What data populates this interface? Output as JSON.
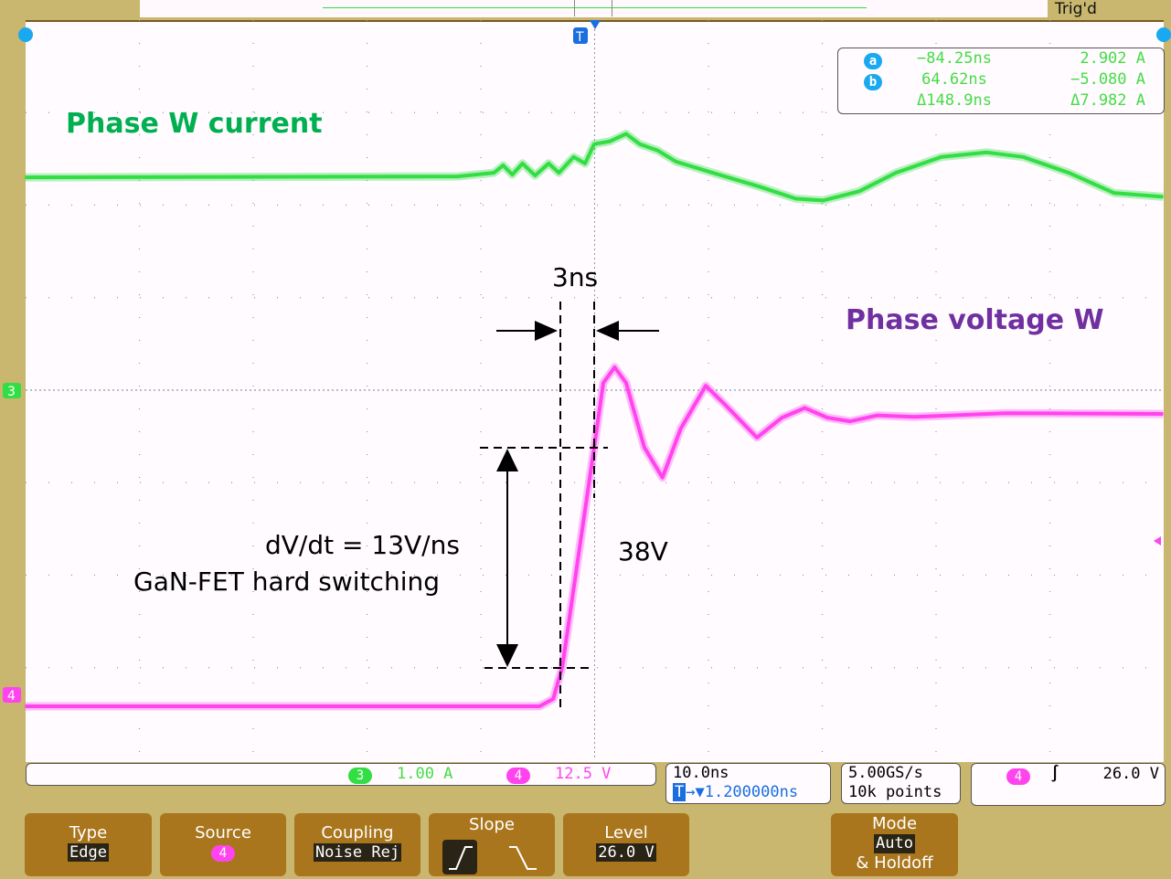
{
  "status": {
    "trigger_state": "Trig'd"
  },
  "labels": {
    "current": "Phase W current",
    "voltage": "Phase voltage W",
    "rise_time": "3ns",
    "dvdt": "dV/dt = 13V/ns",
    "mode": "GaN-FET hard switching",
    "amplitude": "38V"
  },
  "cursors": {
    "a_label": "a",
    "b_label": "b",
    "a_time": "−84.25ns",
    "a_value": "2.902 A",
    "b_time": "64.62ns",
    "b_value": "−5.080 A",
    "delta_time": "Δ148.9ns",
    "delta_value": "Δ7.982 A"
  },
  "channels": [
    {
      "id": "3",
      "scale": "1.00 A",
      "color": "#33dd44"
    },
    {
      "id": "4",
      "scale": "12.5 V",
      "color": "#ff44ee"
    }
  ],
  "timebase": {
    "scale": "10.0ns",
    "marker": "T",
    "position": "→▼1.200000ns"
  },
  "acquisition": {
    "rate": "5.00GS/s",
    "points": "10k points"
  },
  "trigger": {
    "source": "4",
    "slope_icon": "rising-edge",
    "level": "26.0 V"
  },
  "menu": {
    "type": {
      "title": "Type",
      "value": "Edge"
    },
    "source": {
      "title": "Source",
      "value": "4"
    },
    "coupling": {
      "title": "Coupling",
      "value": "Noise Rej"
    },
    "slope": {
      "title": "Slope"
    },
    "level": {
      "title": "Level",
      "value": "26.0 V"
    },
    "mode": {
      "title": "Mode",
      "value": "Auto",
      "extra": "& Holdoff"
    }
  },
  "chart_data": {
    "type": "line",
    "xlabel": "",
    "ylabel": "",
    "x_unit": "ns",
    "xlim": [
      -48.8,
      51.2
    ],
    "grid": true,
    "series": [
      {
        "name": "Phase W current",
        "channel": "3",
        "unit": "A",
        "per_div": 1.0,
        "color": "#33dd44",
        "t": [
          -48.8,
          -10.8,
          -7.6,
          -6.8,
          -6.0,
          -5.1,
          -4.0,
          -2.8,
          -1.9,
          -0.6,
          0.4,
          1.2,
          2.6,
          4.0,
          5.2,
          6.8,
          8.4,
          11.6,
          15.7,
          18.9,
          21.3,
          24.5,
          27.7,
          31.7,
          35.7,
          38.9,
          42.9,
          46.9,
          51.2
        ],
        "v": [
          2.3,
          2.31,
          2.35,
          2.43,
          2.33,
          2.45,
          2.32,
          2.45,
          2.35,
          2.52,
          2.45,
          2.66,
          2.69,
          2.77,
          2.66,
          2.59,
          2.47,
          2.35,
          2.2,
          2.07,
          2.05,
          2.15,
          2.35,
          2.52,
          2.57,
          2.52,
          2.35,
          2.13,
          2.09
        ]
      },
      {
        "name": "Phase voltage W",
        "channel": "4",
        "unit": "V",
        "per_div": 12.5,
        "color": "#ff44ee",
        "t": [
          -48.8,
          -3.6,
          -2.4,
          -1.6,
          1.2,
          2.0,
          3.0,
          4.0,
          5.6,
          7.2,
          8.8,
          11.0,
          12.8,
          15.5,
          17.7,
          19.7,
          21.7,
          23.7,
          26.1,
          29.3,
          37.3,
          51.2
        ],
        "v": [
          -1.6,
          -1.6,
          -0.6,
          3.7,
          33.4,
          42.1,
          44.2,
          42.1,
          33.4,
          29.3,
          35.9,
          41.7,
          39.0,
          34.7,
          37.4,
          38.7,
          37.4,
          36.9,
          37.7,
          37.5,
          38.0,
          37.9
        ]
      }
    ]
  }
}
